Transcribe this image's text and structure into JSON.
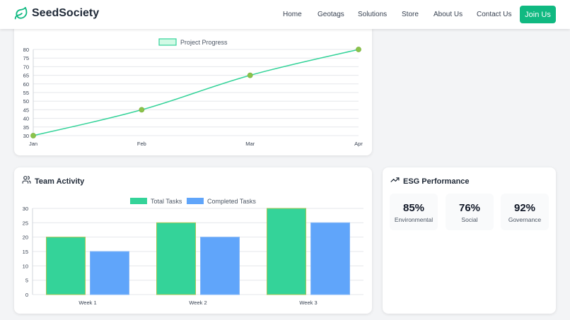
{
  "header": {
    "brand": "SeedSociety",
    "nav": [
      {
        "label": "Home"
      },
      {
        "label": "Geotags"
      },
      {
        "label": "Solutions"
      },
      {
        "label": "Store"
      },
      {
        "label": "About Us"
      },
      {
        "label": "Contact Us"
      }
    ],
    "cta": "Join Us"
  },
  "colors": {
    "accent": "#10b981",
    "total_tasks": "#34d399",
    "completed_tasks": "#60a5fa",
    "point": "#8bc34a"
  },
  "team": {
    "title": "Team Activity"
  },
  "esg": {
    "title": "ESG Performance",
    "metrics": [
      {
        "value": "85%",
        "label": "Environmental"
      },
      {
        "value": "76%",
        "label": "Social"
      },
      {
        "value": "92%",
        "label": "Governance"
      }
    ]
  },
  "chart_data": [
    {
      "type": "line",
      "title": "",
      "legend": [
        "Project Progress"
      ],
      "legend_position": "top",
      "categories": [
        "Jan",
        "Feb",
        "Mar",
        "Apr"
      ],
      "series": [
        {
          "name": "Project Progress",
          "values": [
            30,
            45,
            65,
            80
          ]
        }
      ],
      "yticks": [
        "30",
        "35",
        "40",
        "45",
        "50",
        "55",
        "60",
        "65",
        "70",
        "75",
        "80"
      ],
      "ylim": [
        30,
        80
      ],
      "grid": true
    },
    {
      "type": "bar",
      "title": "",
      "legend": [
        "Total Tasks",
        "Completed Tasks"
      ],
      "legend_position": "top",
      "categories": [
        "Week 1",
        "Week 2",
        "Week 3"
      ],
      "series": [
        {
          "name": "Total Tasks",
          "values": [
            20,
            25,
            30
          ]
        },
        {
          "name": "Completed Tasks",
          "values": [
            15,
            20,
            25
          ]
        }
      ],
      "yticks": [
        "0",
        "5",
        "10",
        "15",
        "20",
        "25",
        "30"
      ],
      "ylim": [
        0,
        30
      ],
      "grid": true
    }
  ]
}
